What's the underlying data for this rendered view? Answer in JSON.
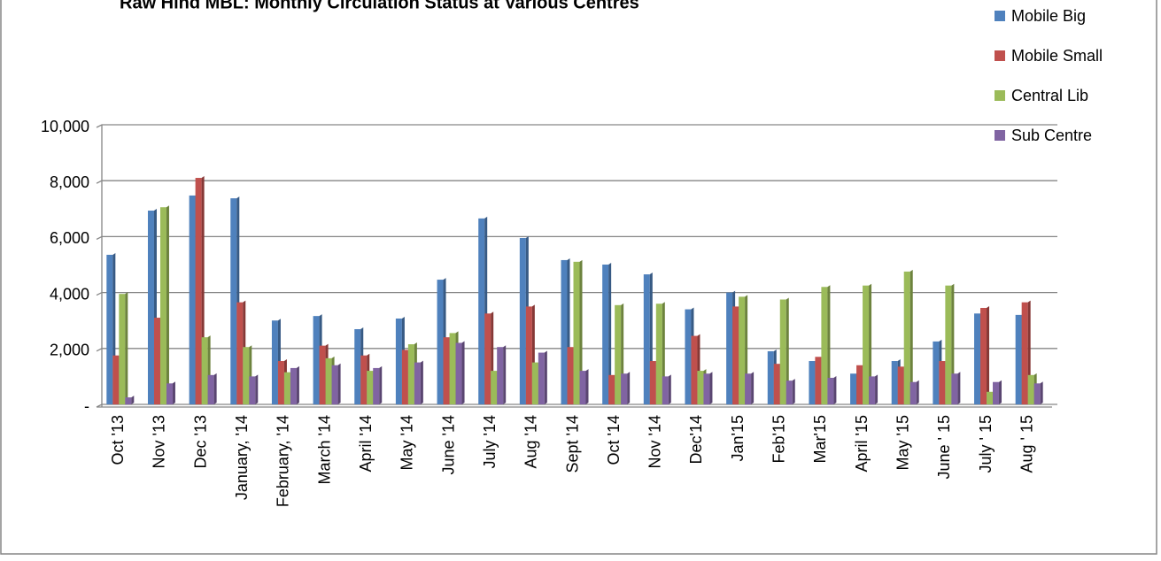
{
  "chart_data": {
    "type": "bar",
    "title": "Raw Hind MBL: Monthly Circulation Status at Various Centres",
    "categories": [
      "Oct '13",
      "Nov '13",
      "Dec '13",
      "January, '14",
      "February, '14",
      "March '14",
      "April '14",
      "May '14",
      "June '14",
      "July '14",
      "Aug '14",
      "Sept '14",
      "Oct '14",
      "Nov '14",
      "Dec'14",
      "Jan'15",
      "Feb'15",
      "Mar'15",
      "April '15",
      "May '15",
      "June ' 15",
      "July ' 15",
      "Aug ' 15"
    ],
    "series": [
      {
        "name": "Mobile Big",
        "color": "#4f81bd",
        "values": [
          5350,
          6930,
          7470,
          7370,
          3000,
          3160,
          2690,
          3070,
          4460,
          6650,
          5950,
          5160,
          5000,
          4650,
          3400,
          4000,
          1900,
          1550,
          1100,
          1550,
          2250,
          3250,
          3200
        ]
      },
      {
        "name": "Mobile Small",
        "color": "#c0504d",
        "values": [
          1750,
          3100,
          8100,
          3650,
          1550,
          2100,
          1750,
          1950,
          2400,
          3250,
          3500,
          2050,
          1050,
          1550,
          2450,
          3500,
          1450,
          1700,
          1400,
          1350,
          1550,
          3450,
          3650
        ]
      },
      {
        "name": "Central Lib",
        "color": "#9bbb59",
        "values": [
          3950,
          7050,
          2400,
          2050,
          1150,
          1650,
          1200,
          2150,
          2550,
          1200,
          1500,
          5100,
          3550,
          3600,
          1200,
          3850,
          3750,
          4200,
          4250,
          4750,
          4250,
          450,
          1050
        ]
      },
      {
        "name": "Sub Centre",
        "color": "#8064a2",
        "values": [
          250,
          750,
          1050,
          1000,
          1300,
          1400,
          1300,
          1500,
          2200,
          2050,
          1850,
          1200,
          1100,
          1000,
          1100,
          1100,
          850,
          950,
          1000,
          800,
          1100,
          800,
          750
        ]
      }
    ],
    "ylim": [
      0,
      10000
    ],
    "yticks": [
      {
        "value": 0,
        "label": "-"
      },
      {
        "value": 2000,
        "label": "2,000"
      },
      {
        "value": 4000,
        "label": "4,000"
      },
      {
        "value": 6000,
        "label": "6,000"
      },
      {
        "value": 8000,
        "label": "8,000"
      },
      {
        "value": 10000,
        "label": "10,000"
      }
    ],
    "grid": true,
    "legend": "top-right"
  }
}
